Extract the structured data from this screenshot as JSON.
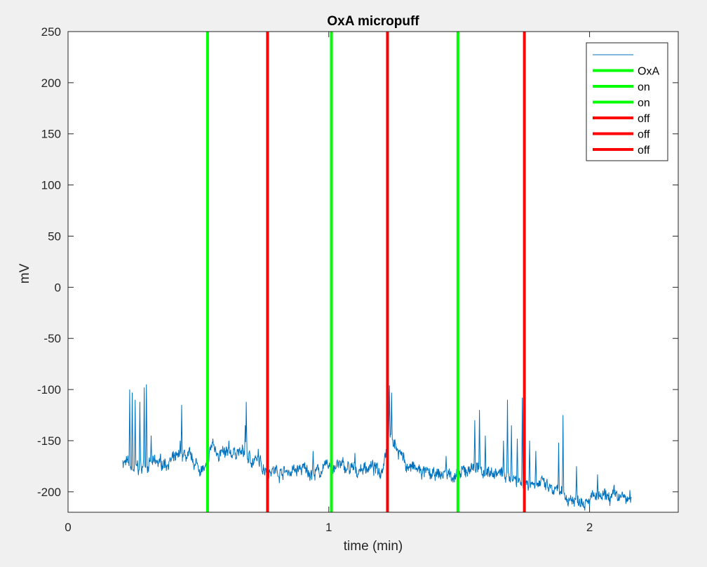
{
  "chart_data": {
    "type": "line",
    "title": "OxA micropuff",
    "xlabel": "time (min)",
    "ylabel": "mV",
    "xlim": [
      0,
      2.34
    ],
    "ylim": [
      -220,
      250
    ],
    "xticks": [
      0,
      1,
      2
    ],
    "yticks": [
      250,
      200,
      150,
      100,
      50,
      0,
      -50,
      -100,
      -150,
      -200
    ],
    "grid": false,
    "legend_location": "top-right",
    "series": [
      {
        "label": "",
        "color": "#0072BD",
        "style": "trace",
        "anchors": [
          [
            0.21,
            -170
          ],
          [
            0.25,
            -178
          ],
          [
            0.3,
            -174
          ],
          [
            0.35,
            -172
          ],
          [
            0.4,
            -170
          ],
          [
            0.45,
            -165
          ],
          [
            0.5,
            -175
          ],
          [
            0.53,
            -180
          ],
          [
            0.55,
            -155
          ],
          [
            0.6,
            -165
          ],
          [
            0.65,
            -160
          ],
          [
            0.7,
            -168
          ],
          [
            0.75,
            -175
          ],
          [
            0.8,
            -180
          ],
          [
            0.85,
            -180
          ],
          [
            0.9,
            -178
          ],
          [
            0.95,
            -182
          ],
          [
            1.0,
            -175
          ],
          [
            1.05,
            -175
          ],
          [
            1.1,
            -180
          ],
          [
            1.15,
            -175
          ],
          [
            1.2,
            -180
          ],
          [
            1.23,
            -145
          ],
          [
            1.27,
            -160
          ],
          [
            1.3,
            -175
          ],
          [
            1.35,
            -180
          ],
          [
            1.4,
            -185
          ],
          [
            1.45,
            -182
          ],
          [
            1.5,
            -185
          ],
          [
            1.55,
            -175
          ],
          [
            1.6,
            -180
          ],
          [
            1.65,
            -182
          ],
          [
            1.7,
            -185
          ],
          [
            1.75,
            -192
          ],
          [
            1.8,
            -190
          ],
          [
            1.85,
            -198
          ],
          [
            1.9,
            -205
          ],
          [
            1.95,
            -208
          ],
          [
            2.0,
            -205
          ],
          [
            2.05,
            -207
          ],
          [
            2.1,
            -204
          ],
          [
            2.16,
            -208
          ]
        ],
        "spikes": [
          [
            0.236,
            -100
          ],
          [
            0.246,
            -103
          ],
          [
            0.258,
            -110
          ],
          [
            0.276,
            -112
          ],
          [
            0.292,
            -98
          ],
          [
            0.3,
            -95
          ],
          [
            0.318,
            -145
          ],
          [
            0.43,
            -150
          ],
          [
            0.435,
            -115
          ],
          [
            0.555,
            -148
          ],
          [
            0.617,
            -150
          ],
          [
            0.68,
            -135
          ],
          [
            0.683,
            -112
          ],
          [
            0.73,
            -158
          ],
          [
            0.94,
            -160
          ],
          [
            1.01,
            -158
          ],
          [
            1.1,
            -162
          ],
          [
            1.225,
            -100
          ],
          [
            1.233,
            -96
          ],
          [
            1.241,
            -103
          ],
          [
            1.27,
            -160
          ],
          [
            1.45,
            -165
          ],
          [
            1.56,
            -130
          ],
          [
            1.578,
            -120
          ],
          [
            1.6,
            -145
          ],
          [
            1.67,
            -150
          ],
          [
            1.685,
            -110
          ],
          [
            1.7,
            -135
          ],
          [
            1.722,
            -148
          ],
          [
            1.742,
            -108
          ],
          [
            1.77,
            -150
          ],
          [
            1.793,
            -160
          ],
          [
            1.882,
            -152
          ],
          [
            1.898,
            -125
          ],
          [
            1.95,
            -175
          ],
          [
            2.03,
            -183
          ]
        ]
      },
      {
        "label": "OxA",
        "color": "#00FF00",
        "x": 0.535
      },
      {
        "label": "on",
        "color": "#00FF00",
        "x": 1.01
      },
      {
        "label": "on",
        "color": "#00FF00",
        "x": 1.495
      },
      {
        "label": "off",
        "color": "#FF0000",
        "x": 0.765
      },
      {
        "label": "off",
        "color": "#FF0000",
        "x": 1.225
      },
      {
        "label": "off",
        "color": "#FF0000",
        "x": 1.75
      }
    ]
  }
}
